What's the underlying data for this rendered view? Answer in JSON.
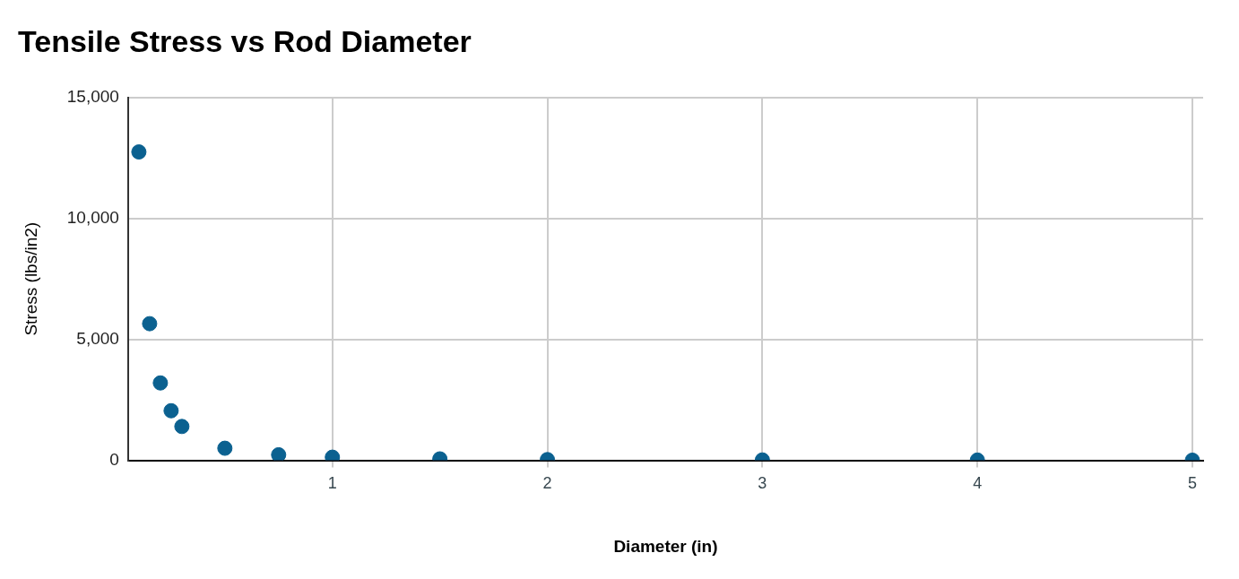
{
  "chart_data": {
    "type": "scatter",
    "title": "Tensile Stress vs Rod Diameter",
    "x_label": "Diameter (in)",
    "y_label": "Stress (lbs/in2)",
    "x": [
      0.1,
      0.15,
      0.2,
      0.25,
      0.3,
      0.5,
      0.75,
      1,
      1.5,
      2,
      3,
      4,
      5
    ],
    "values": [
      12750,
      5650,
      3200,
      2050,
      1400,
      500,
      230,
      130,
      60,
      30,
      15,
      10,
      5
    ],
    "color": "#0b6190",
    "marker": "circle",
    "xlim": [
      0.05,
      5.05
    ],
    "xticks": [
      1,
      2,
      3,
      4,
      5
    ],
    "ylim": [
      0,
      15000
    ],
    "yticks": [
      0,
      {
        "value": 5000,
        "label": "5,000"
      },
      {
        "value": 10000,
        "label": "10,000"
      },
      {
        "value": 15000,
        "label": "15,000"
      }
    ],
    "grid": true
  }
}
